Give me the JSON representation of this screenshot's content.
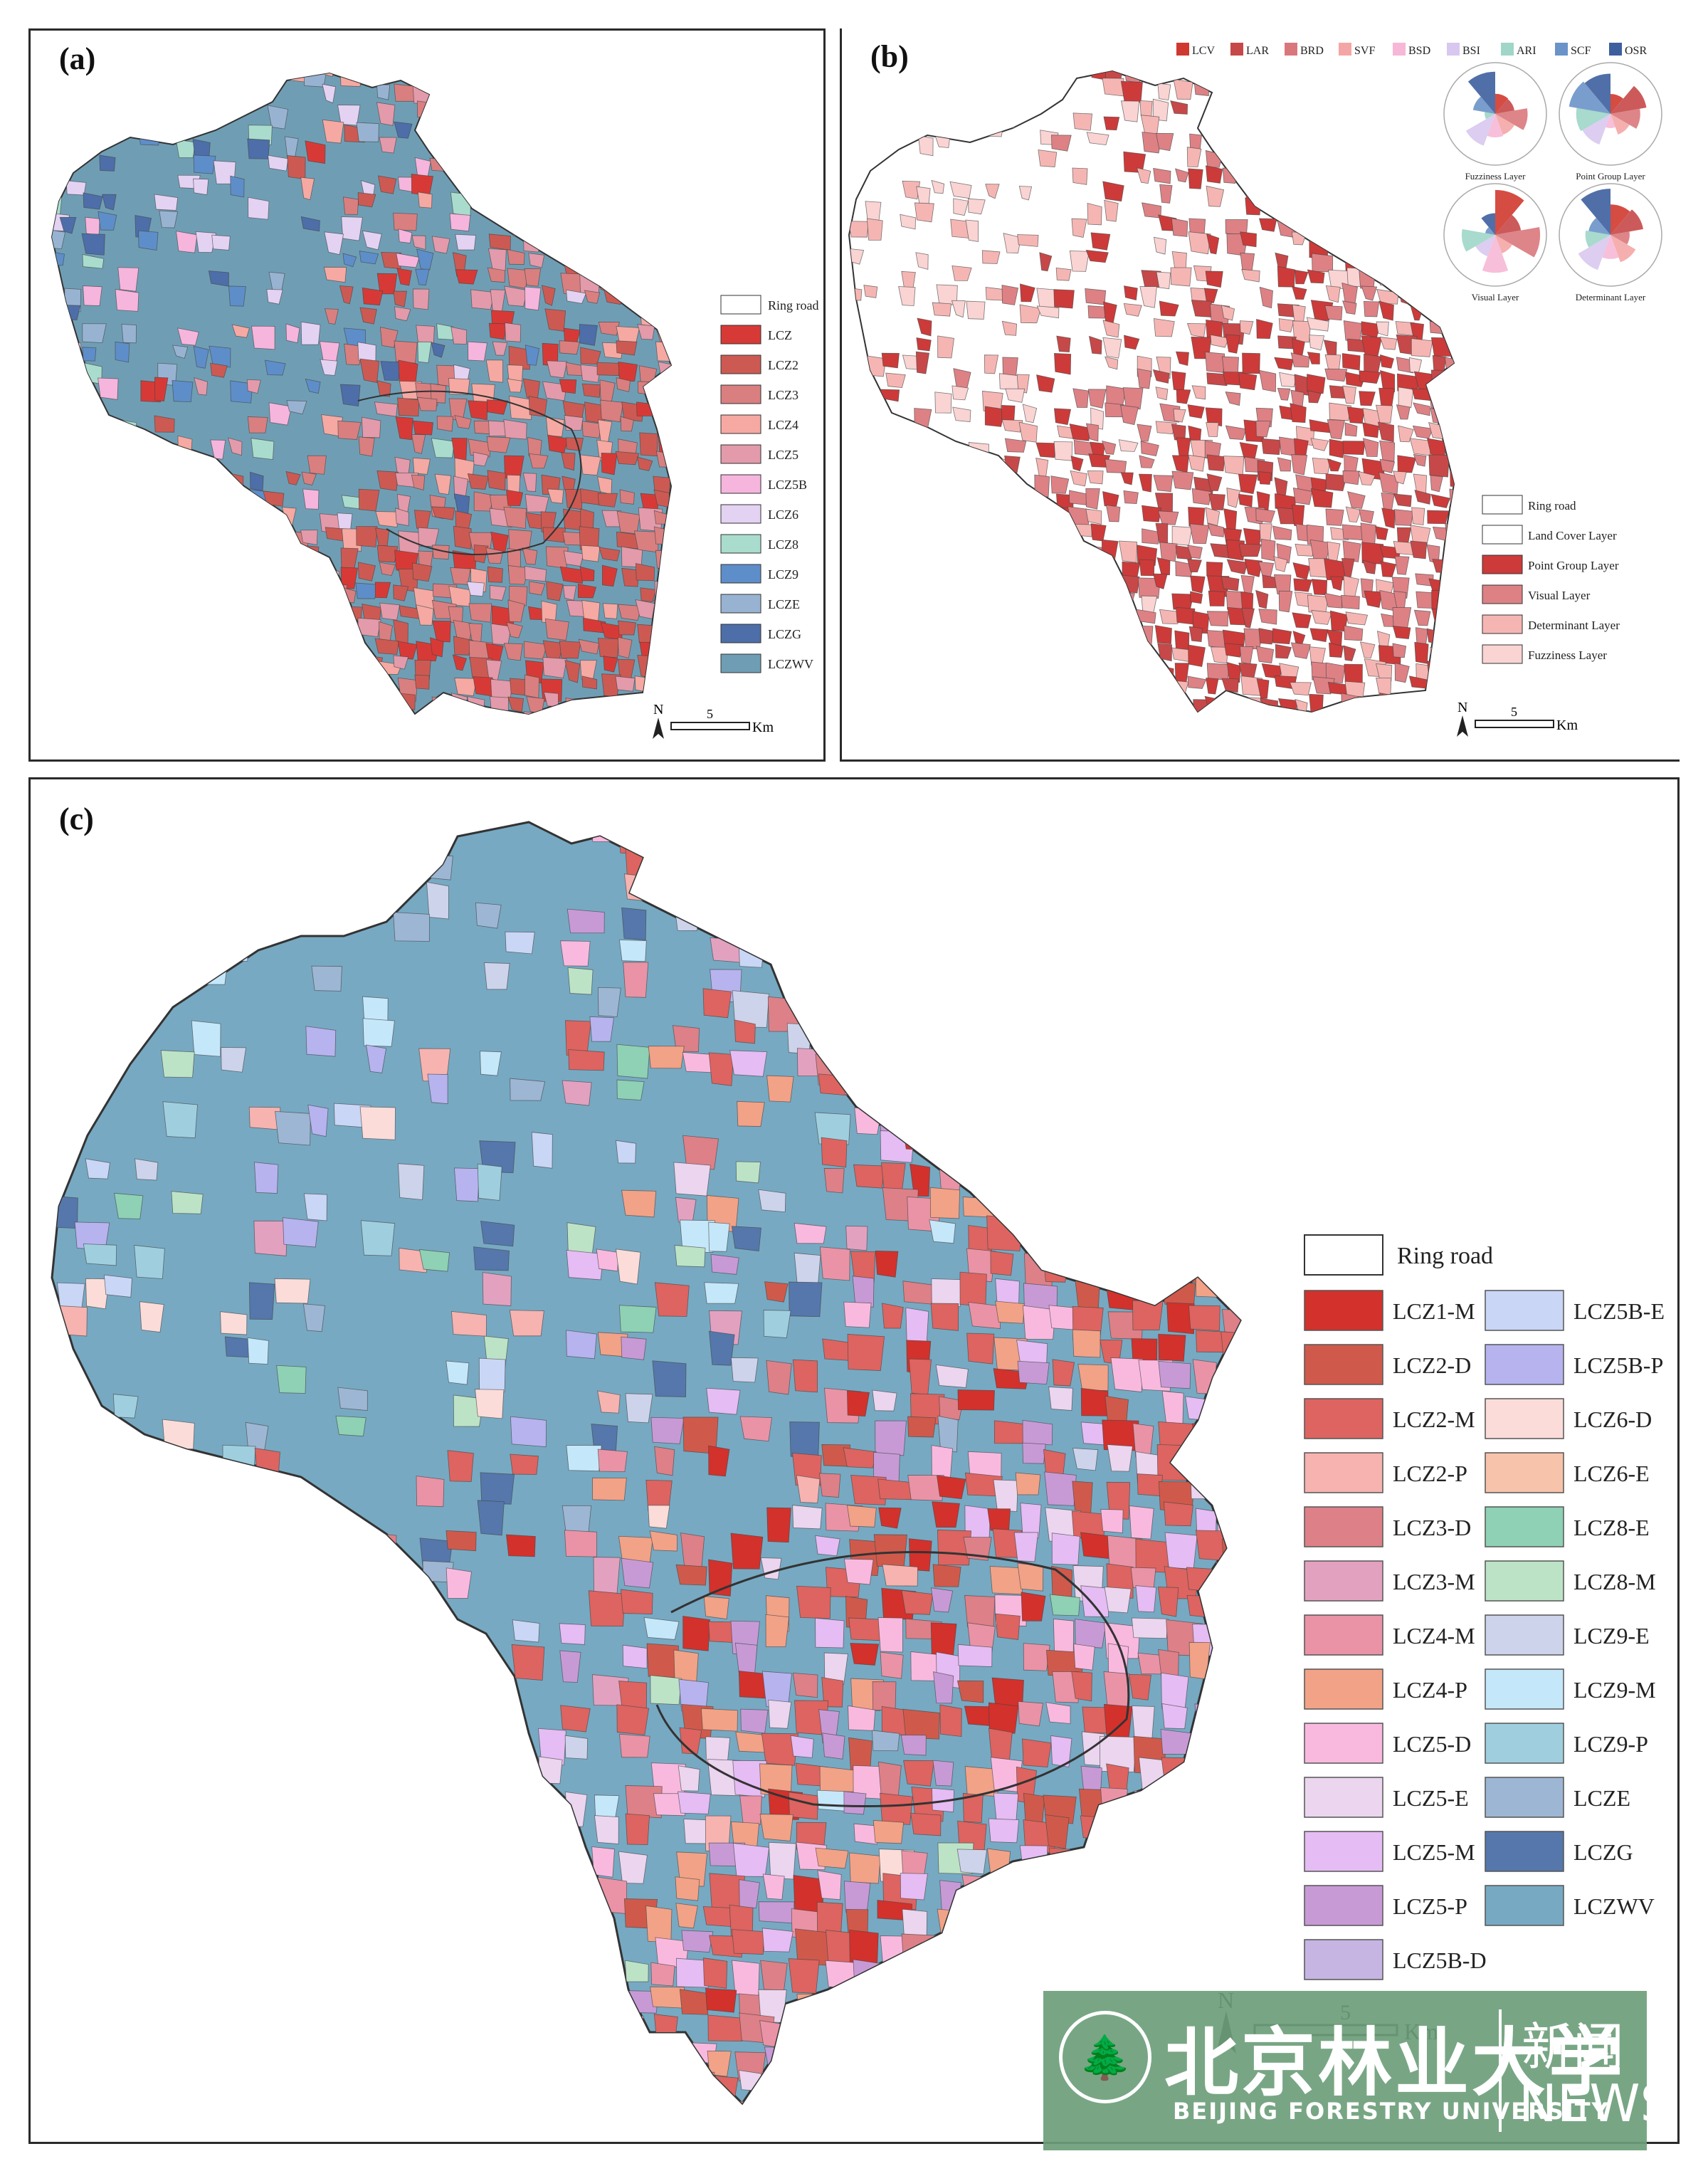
{
  "panel_a": {
    "label": "(a)",
    "legend": [
      {
        "label": "Ring road",
        "color": "#ffffff"
      },
      {
        "label": "LCZ",
        "color": "#d73a36"
      },
      {
        "label": "LCZ2",
        "color": "#cc5a53"
      },
      {
        "label": "LCZ3",
        "color": "#d97f80"
      },
      {
        "label": "LCZ4",
        "color": "#f5a9a2"
      },
      {
        "label": "LCZ5",
        "color": "#e39aaa"
      },
      {
        "label": "LCZ5B",
        "color": "#f6b5dc"
      },
      {
        "label": "LCZ6",
        "color": "#e4d2f3"
      },
      {
        "label": "LCZ8",
        "color": "#a9dccd"
      },
      {
        "label": "LCZ9",
        "color": "#5e8ec9"
      },
      {
        "label": "LCZE",
        "color": "#98b3d2"
      },
      {
        "label": "LCZG",
        "color": "#4d6ea8"
      },
      {
        "label": "LCZWV",
        "color": "#6f9eb4"
      }
    ],
    "north": "N",
    "scale_value": "5",
    "scale_unit": "Km"
  },
  "panel_b": {
    "label": "(b)",
    "top_legend": [
      {
        "label": "LCV",
        "color": "#d0392f"
      },
      {
        "label": "LAR",
        "color": "#c74848"
      },
      {
        "label": "BRD",
        "color": "#d9787c"
      },
      {
        "label": "SVF",
        "color": "#f4a6a6"
      },
      {
        "label": "BSD",
        "color": "#f6b8d6"
      },
      {
        "label": "BSI",
        "color": "#d8c8ef"
      },
      {
        "label": "ARI",
        "color": "#9fd6c8"
      },
      {
        "label": "SCF",
        "color": "#6a93c8"
      },
      {
        "label": "OSR",
        "color": "#3d5f9e"
      }
    ],
    "roses": [
      "Fuzziness Layer",
      "Point Group Layer",
      "Visual Layer",
      "Determinant Layer"
    ],
    "legend": [
      {
        "label": "Ring road",
        "color": "#ffffff"
      },
      {
        "label": "Land Cover Layer",
        "color": "#ffffff"
      },
      {
        "label": "Point Group Layer",
        "color": "#cc3b39"
      },
      {
        "label": "Visual Layer",
        "color": "#dd8185"
      },
      {
        "label": "Determinant Layer",
        "color": "#f5b6b3"
      },
      {
        "label": "Fuzziness Layer",
        "color": "#fad3d3"
      }
    ],
    "north": "N",
    "scale_value": "5",
    "scale_unit": "Km"
  },
  "panel_c": {
    "label": "(c)",
    "legend_header": "Ring road",
    "legend_left": [
      {
        "label": "LCZ1-M",
        "color": "#d3312c"
      },
      {
        "label": "LCZ2-D",
        "color": "#cf5a4b"
      },
      {
        "label": "LCZ2-M",
        "color": "#dd6460"
      },
      {
        "label": "LCZ2-P",
        "color": "#f6b3b0"
      },
      {
        "label": "LCZ3-D",
        "color": "#dd8088"
      },
      {
        "label": "LCZ3-M",
        "color": "#e3a1c0"
      },
      {
        "label": "LCZ4-M",
        "color": "#ea93a6"
      },
      {
        "label": "LCZ4-P",
        "color": "#f2a287"
      },
      {
        "label": "LCZ5-D",
        "color": "#f9b9df"
      },
      {
        "label": "LCZ5-E",
        "color": "#ebd5ef"
      },
      {
        "label": "LCZ5-M",
        "color": "#e5bcf3"
      },
      {
        "label": "LCZ5-P",
        "color": "#c79ad6"
      },
      {
        "label": "LCZ5B-D",
        "color": "#c6b5e3"
      }
    ],
    "legend_right": [
      {
        "label": "LCZ5B-E",
        "color": "#c9d6f6"
      },
      {
        "label": "LCZ5B-P",
        "color": "#b6b3ef"
      },
      {
        "label": "LCZ6-D",
        "color": "#fbdcd9"
      },
      {
        "label": "LCZ6-E",
        "color": "#f8c3ab"
      },
      {
        "label": "LCZ8-E",
        "color": "#8ed1b5"
      },
      {
        "label": "LCZ8-M",
        "color": "#bde3c6"
      },
      {
        "label": "LCZ9-E",
        "color": "#cdd3ea"
      },
      {
        "label": "LCZ9-M",
        "color": "#c5e7fa"
      },
      {
        "label": "LCZ9-P",
        "color": "#9fcfdf"
      },
      {
        "label": "LCZE",
        "color": "#9db6d3"
      },
      {
        "label": "LCZG",
        "color": "#5577ab"
      },
      {
        "label": "LCZWV",
        "color": "#77a9c2"
      }
    ],
    "north": "N",
    "scale_value": "5",
    "scale_unit": "Km"
  },
  "watermark": {
    "school_cn": "北京林业大学",
    "school_en": "BEIJING FORESTRY UNIVERSITY",
    "news_cn": "新闻",
    "news_en": "NEWS",
    "logo_icon": "tree-emblem-icon"
  }
}
